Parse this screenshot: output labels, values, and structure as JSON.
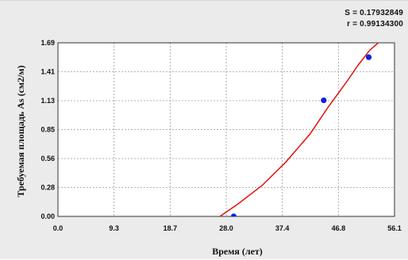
{
  "stats": {
    "s_label": "S = 0.17932849",
    "r_label": "r = 0.99134300"
  },
  "colors": {
    "curve": "#e01010",
    "points": "#1020e0",
    "grid": "#9a9a9a",
    "plot_bg": "#ffffff",
    "panel_bg": "#ebebeb"
  },
  "chart_data": {
    "type": "scatter",
    "title": "",
    "xlabel": "Время (лет)",
    "ylabel": "Требуемая площадь As (см2/м)",
    "xlim": [
      0.0,
      56.1
    ],
    "ylim": [
      0.0,
      1.69
    ],
    "x_ticks": [
      "0.0",
      "9.3",
      "18.7",
      "28.0",
      "37.4",
      "46.8",
      "56.1"
    ],
    "y_ticks": [
      "0.00",
      "0.28",
      "0.56",
      "0.85",
      "1.13",
      "1.41",
      "1.69"
    ],
    "grid": true,
    "series": [
      {
        "kind": "points",
        "x": [
          29.3,
          44.3,
          51.8
        ],
        "y": [
          0.0,
          1.13,
          1.55
        ]
      },
      {
        "kind": "fit-curve",
        "x": [
          27.0,
          30.0,
          34.0,
          38.0,
          42.0,
          45.0,
          48.0,
          50.0,
          52.0,
          54.0
        ],
        "y": [
          0.0,
          0.12,
          0.3,
          0.53,
          0.8,
          1.06,
          1.3,
          1.47,
          1.62,
          1.72
        ]
      }
    ]
  }
}
